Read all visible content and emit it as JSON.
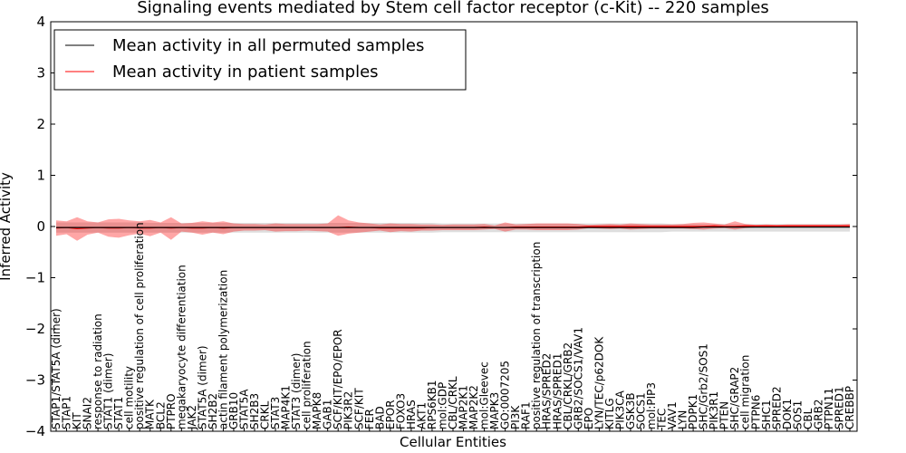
{
  "chart_data": {
    "type": "line",
    "title": "Signaling events mediated by Stem cell factor receptor (c-Kit) -- 220 samples",
    "xlabel": "Cellular Entities",
    "ylabel": "Inferred Activity",
    "ylim": [
      -4,
      4
    ],
    "yticks": [
      -4,
      -3,
      -2,
      -1,
      0,
      1,
      2,
      3,
      4
    ],
    "ytick_labels": [
      "−4",
      "−3",
      "−2",
      "−1",
      "0",
      "1",
      "2",
      "3",
      "4"
    ],
    "legend": {
      "position": "top-left"
    },
    "categories": [
      "STAP1/STAT5A (dimer)",
      "STAP1",
      "KIT",
      "SNAI2",
      "response to radiation",
      "STAT1 (dimer)",
      "STAT1",
      "cell motility",
      "positive regulation of cell proliferation",
      "MATK",
      "BCL2",
      "PTPRO",
      "megakaryocyte differentiation",
      "JAK2",
      "STAT5A (dimer)",
      "SH2B2",
      "actin filament polymerization",
      "GRB10",
      "STAT5A",
      "SH2B3",
      "CRKL",
      "STAT3",
      "MAP4K1",
      "STAT3 (dimer)",
      "cell proliferation",
      "MAPK8",
      "GAB1",
      "SCF/KIT/EPO/EPOR",
      "PIK3R2",
      "SCF/KIT",
      "FER",
      "BAD",
      "EPOR",
      "FOXO3",
      "HRAS",
      "AKT1",
      "RPS6KB1",
      "mol:GDP",
      "CBL/CRKL",
      "MAP2K1",
      "MAP2K2",
      "mol:Gleevec",
      "MAPK3",
      "GO:0007205",
      "PI3K",
      "RAF1",
      "positive regulation of transcription",
      "HRAS/SPRED2",
      "HRAS/SPRED1",
      "CBL/CRKL/GRB2",
      "GRB2/SOCS1/VAV1",
      "EPO",
      "LYN/TEC/p62DOK",
      "KITLG",
      "PIK3CA",
      "GSK3B",
      "SOCS1",
      "mol:PIP3",
      "TEC",
      "VAV1",
      "LYN",
      "PDPK1",
      "SHC/Grb2/SOS1",
      "PIK3R1",
      "PTEN",
      "SHC/GRAP2",
      "cell migration",
      "PTPN6",
      "SHC1",
      "SPRED2",
      "DOK1",
      "SOS1",
      "CBL",
      "GRB2",
      "PTPN11",
      "SPRED1",
      "CREBBP"
    ],
    "series": [
      {
        "name": "Mean activity in all permuted samples",
        "color": "#000000",
        "values": [
          -0.02,
          -0.02,
          -0.02,
          -0.02,
          -0.02,
          -0.02,
          -0.02,
          -0.02,
          -0.02,
          -0.02,
          -0.02,
          -0.02,
          -0.02,
          -0.02,
          -0.02,
          -0.02,
          -0.02,
          -0.02,
          -0.02,
          -0.02,
          -0.02,
          -0.02,
          -0.02,
          -0.02,
          -0.02,
          -0.02,
          -0.02,
          -0.02,
          -0.02,
          -0.02,
          -0.02,
          -0.02,
          -0.02,
          -0.02,
          -0.02,
          -0.02,
          -0.02,
          -0.02,
          -0.02,
          -0.02,
          -0.02,
          -0.02,
          -0.02,
          -0.02,
          -0.02,
          -0.02,
          -0.02,
          -0.02,
          -0.02,
          -0.02,
          -0.02,
          -0.02,
          -0.02,
          -0.02,
          -0.02,
          -0.02,
          -0.02,
          -0.02,
          -0.02,
          -0.02,
          -0.02,
          -0.02,
          -0.01,
          -0.01,
          -0.01,
          -0.01,
          -0.01,
          -0.01,
          -0.01,
          -0.01,
          -0.01,
          -0.01,
          -0.01,
          -0.01,
          -0.01,
          -0.01,
          -0.01
        ],
        "upper": [
          0.08,
          0.08,
          0.08,
          0.08,
          0.08,
          0.08,
          0.08,
          0.08,
          0.08,
          0.07,
          0.07,
          0.07,
          0.07,
          0.07,
          0.07,
          0.07,
          0.07,
          0.07,
          0.07,
          0.07,
          0.07,
          0.07,
          0.07,
          0.07,
          0.07,
          0.07,
          0.07,
          0.07,
          0.07,
          0.07,
          0.07,
          0.07,
          0.07,
          0.07,
          0.07,
          0.07,
          0.07,
          0.06,
          0.06,
          0.06,
          0.06,
          0.06,
          0.06,
          0.06,
          0.06,
          0.06,
          0.06,
          0.06,
          0.06,
          0.06,
          0.06,
          0.06,
          0.06,
          0.06,
          0.06,
          0.06,
          0.06,
          0.06,
          0.06,
          0.05,
          0.05,
          0.05,
          0.05,
          0.05,
          0.05,
          0.05,
          0.05,
          0.05,
          0.05,
          0.05,
          0.05,
          0.05,
          0.05,
          0.05,
          0.05,
          0.05,
          0.05
        ],
        "lower": [
          -0.12,
          -0.12,
          -0.12,
          -0.12,
          -0.12,
          -0.12,
          -0.12,
          -0.12,
          -0.12,
          -0.12,
          -0.12,
          -0.12,
          -0.12,
          -0.12,
          -0.12,
          -0.12,
          -0.12,
          -0.12,
          -0.12,
          -0.12,
          -0.12,
          -0.12,
          -0.12,
          -0.12,
          -0.12,
          -0.12,
          -0.12,
          -0.12,
          -0.12,
          -0.12,
          -0.12,
          -0.12,
          -0.12,
          -0.12,
          -0.12,
          -0.12,
          -0.12,
          -0.11,
          -0.11,
          -0.11,
          -0.11,
          -0.11,
          -0.11,
          -0.11,
          -0.11,
          -0.11,
          -0.11,
          -0.11,
          -0.11,
          -0.11,
          -0.11,
          -0.11,
          -0.11,
          -0.11,
          -0.11,
          -0.11,
          -0.11,
          -0.11,
          -0.11,
          -0.1,
          -0.1,
          -0.1,
          -0.1,
          -0.1,
          -0.1,
          -0.1,
          -0.1,
          -0.1,
          -0.1,
          -0.1,
          -0.1,
          -0.1,
          -0.1,
          -0.1,
          -0.1,
          -0.1,
          -0.1
        ]
      },
      {
        "name": "Mean activity in patient samples",
        "color": "#ff0000",
        "values": [
          -0.03,
          -0.02,
          -0.04,
          -0.03,
          -0.02,
          -0.03,
          -0.03,
          -0.02,
          -0.03,
          -0.03,
          -0.02,
          -0.03,
          -0.02,
          -0.03,
          -0.03,
          -0.02,
          -0.03,
          -0.02,
          -0.02,
          -0.02,
          -0.02,
          -0.02,
          -0.02,
          -0.02,
          -0.02,
          -0.02,
          -0.02,
          -0.02,
          -0.01,
          -0.02,
          -0.02,
          -0.03,
          -0.03,
          -0.03,
          -0.03,
          -0.03,
          -0.02,
          -0.02,
          -0.02,
          -0.02,
          -0.02,
          -0.01,
          -0.02,
          -0.02,
          -0.01,
          -0.01,
          -0.01,
          -0.01,
          -0.01,
          -0.01,
          -0.01,
          0.0,
          0.0,
          0.0,
          0.0,
          0.0,
          0.0,
          0.0,
          0.0,
          0.0,
          0.0,
          0.0,
          0.0,
          0.01,
          0.0,
          0.0,
          0.01,
          0.01,
          0.01,
          0.01,
          0.01,
          0.01,
          0.01,
          0.01,
          0.01,
          0.01,
          0.01
        ],
        "upper": [
          0.12,
          0.1,
          0.18,
          0.1,
          0.08,
          0.14,
          0.15,
          0.12,
          0.1,
          0.13,
          0.08,
          0.18,
          0.06,
          0.07,
          0.1,
          0.08,
          0.1,
          0.06,
          0.05,
          0.05,
          0.04,
          0.06,
          0.05,
          0.05,
          0.05,
          0.05,
          0.06,
          0.22,
          0.12,
          0.08,
          0.06,
          0.04,
          0.06,
          0.05,
          0.05,
          0.04,
          0.04,
          0.03,
          0.04,
          0.04,
          0.04,
          0.05,
          0.02,
          0.08,
          0.04,
          0.05,
          0.06,
          0.06,
          0.06,
          0.06,
          0.05,
          0.03,
          0.04,
          0.05,
          0.04,
          0.06,
          0.05,
          0.04,
          0.04,
          0.04,
          0.05,
          0.07,
          0.08,
          0.06,
          0.04,
          0.1,
          0.05,
          0.03,
          0.04,
          0.03,
          0.04,
          0.04,
          0.04,
          0.04,
          0.04,
          0.04,
          0.05
        ],
        "lower": [
          -0.18,
          -0.15,
          -0.28,
          -0.16,
          -0.12,
          -0.2,
          -0.22,
          -0.17,
          -0.14,
          -0.19,
          -0.12,
          -0.26,
          -0.1,
          -0.12,
          -0.16,
          -0.12,
          -0.15,
          -0.1,
          -0.08,
          -0.08,
          -0.07,
          -0.1,
          -0.09,
          -0.09,
          -0.08,
          -0.09,
          -0.1,
          -0.18,
          -0.14,
          -0.12,
          -0.1,
          -0.08,
          -0.11,
          -0.09,
          -0.1,
          -0.08,
          -0.08,
          -0.07,
          -0.07,
          -0.07,
          -0.07,
          -0.06,
          -0.05,
          -0.1,
          -0.06,
          -0.06,
          -0.07,
          -0.07,
          -0.07,
          -0.07,
          -0.06,
          -0.03,
          -0.04,
          -0.05,
          -0.04,
          -0.06,
          -0.05,
          -0.04,
          -0.04,
          -0.04,
          -0.04,
          -0.05,
          -0.06,
          -0.04,
          -0.03,
          -0.06,
          -0.03,
          -0.02,
          -0.02,
          -0.02,
          -0.02,
          -0.02,
          -0.02,
          -0.02,
          -0.02,
          -0.02,
          -0.02
        ]
      }
    ]
  }
}
